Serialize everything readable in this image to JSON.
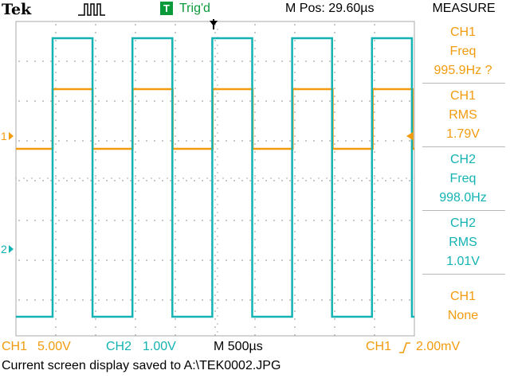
{
  "header": {
    "brand": "Tek",
    "acquisition_icon": "run-waveform-icon",
    "trigger_badge": "T",
    "trigger_status": "Trig'd",
    "horizontal_position": "M Pos: 29.60µs",
    "menu_title": "MEASURE"
  },
  "colors": {
    "ch1": "#f29b0c",
    "ch2": "#14b3b3",
    "trigger": "#0a9a3a",
    "grid": "#a9a9a9"
  },
  "channel_markers": {
    "ch1": "1",
    "ch2": "2"
  },
  "measurements": [
    {
      "source": "CH1",
      "type": "Freq",
      "value": "995.9Hz ?",
      "channel": "ch1"
    },
    {
      "source": "CH1",
      "type": "RMS",
      "value": "1.79V",
      "channel": "ch1"
    },
    {
      "source": "CH2",
      "type": "Freq",
      "value": "998.0Hz",
      "channel": "ch2"
    },
    {
      "source": "CH2",
      "type": "RMS",
      "value": "1.01V",
      "channel": "ch2"
    },
    {
      "source": "CH1",
      "type": "None",
      "value": "",
      "channel": "ch1"
    }
  ],
  "bottom": {
    "ch1_label": "CH1",
    "ch1_scale": "5.00V",
    "ch2_label": "CH2",
    "ch2_scale": "1.00V",
    "timebase": "M 500µs",
    "trigger_source": "CH1",
    "trigger_slope_icon": "rising-edge-icon",
    "trigger_level": "2.00mV"
  },
  "status_message": "Current screen display saved to A:\\TEK0002.JPG",
  "waveforms": {
    "ch1": {
      "frequency_hz": 995.9,
      "duty_cycle": 0.5,
      "low_level_div": 0,
      "high_level_div": 1.5
    },
    "ch2": {
      "frequency_hz": 998.0,
      "duty_cycle": 0.5,
      "low_level_div": -3.5,
      "high_level_div": 3.5
    }
  }
}
